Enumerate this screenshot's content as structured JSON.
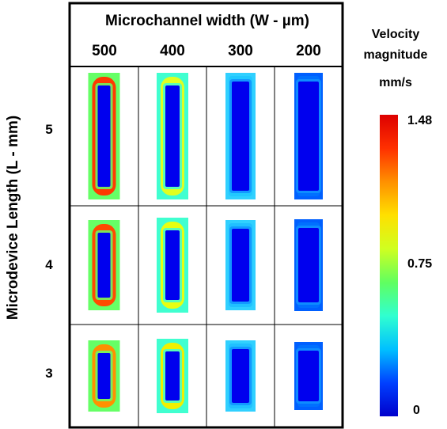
{
  "x_axis_title": "Microchannel width (W - µm)",
  "y_axis_title": "Microdevice Length (L - mm)",
  "widths": [
    "500",
    "400",
    "300",
    "200"
  ],
  "lengths": [
    "5",
    "4",
    "3"
  ],
  "colorbar": {
    "title_line1": "Velocity",
    "title_line2": "magnitude",
    "unit": "mm/s",
    "max_label": "1.48",
    "mid_label": "0.75",
    "min_label": "0",
    "max": 1.48,
    "mid": 0.75,
    "min": 0,
    "colors": [
      "#0000cc",
      "#0040ff",
      "#00c0ff",
      "#30ffd0",
      "#60ff60",
      "#d0ff20",
      "#ffe000",
      "#ff9000",
      "#ff3000",
      "#dd0000"
    ]
  },
  "cells": [
    [
      {
        "outer": "#66ff66",
        "ring": "#ff3a00",
        "inner": "#0000ee",
        "peak": 1.48
      },
      {
        "outer": "#40ffd0",
        "ring": "#e0ff20",
        "inner": "#0000ee",
        "peak": 1.1
      },
      {
        "outer": "#30d0ff",
        "ring": "#20c8ff",
        "inner": "#0000ee",
        "peak": 0.6
      },
      {
        "outer": "#0060ff",
        "ring": "#0070ff",
        "inner": "#0000ee",
        "peak": 0.3
      }
    ],
    [
      {
        "outer": "#66ff66",
        "ring": "#ff4a00",
        "inner": "#0000ee",
        "peak": 1.4
      },
      {
        "outer": "#40ffd0",
        "ring": "#e8ff10",
        "inner": "#0000ee",
        "peak": 1.05
      },
      {
        "outer": "#30d0ff",
        "ring": "#20c0ff",
        "inner": "#0000ee",
        "peak": 0.55
      },
      {
        "outer": "#0060ff",
        "ring": "#0070ff",
        "inner": "#0000ee",
        "peak": 0.25
      }
    ],
    [
      {
        "outer": "#66ff66",
        "ring": "#ff9000",
        "inner": "#0000ee",
        "peak": 1.25
      },
      {
        "outer": "#40ffd0",
        "ring": "#f0f000",
        "inner": "#0000ee",
        "peak": 1.0
      },
      {
        "outer": "#30d0ff",
        "ring": "#20c0ff",
        "inner": "#0000ee",
        "peak": 0.5
      },
      {
        "outer": "#0060ff",
        "ring": "#0070ff",
        "inner": "#0000ee",
        "peak": 0.25
      }
    ]
  ]
}
